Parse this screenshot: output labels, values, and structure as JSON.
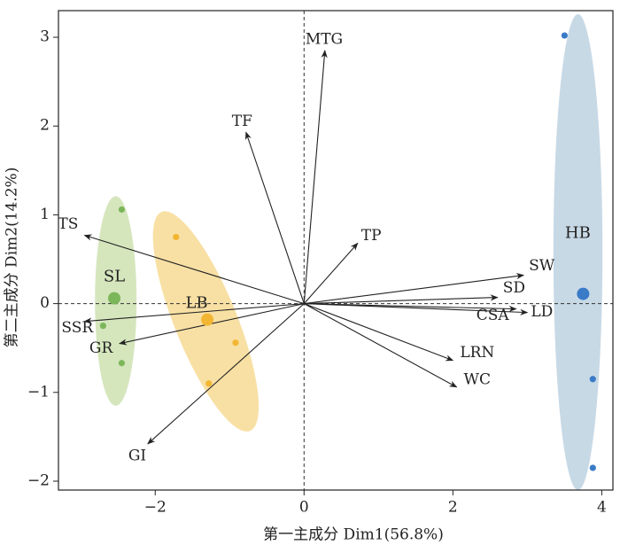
{
  "chart_data": {
    "type": "scatter",
    "subtype": "pca-biplot",
    "xlabel": "第一主成分 Dim1(56.8%)",
    "ylabel": "第二主成分 Dim2(14.2%)",
    "xlim": [
      -3.3,
      4.15
    ],
    "ylim": [
      -2.1,
      3.3
    ],
    "x_ticks": [
      -2,
      0,
      2,
      4
    ],
    "y_ticks": [
      -2,
      -1,
      0,
      1,
      2,
      3
    ],
    "x_tick_labels": [
      "−2",
      "0",
      "2",
      "4"
    ],
    "y_tick_labels": [
      "−2",
      "−1",
      "0",
      "1",
      "2",
      "3"
    ],
    "grid": false,
    "reference_lines": "dashed lines at x=0 and y=0",
    "groups": [
      {
        "name": "SL",
        "color": "#7cb65a",
        "ellipse_color": "#d5e6bd",
        "centroid": [
          -2.55,
          0.06
        ],
        "points": [
          [
            -2.45,
            1.06
          ],
          [
            -2.7,
            -0.25
          ],
          [
            -2.45,
            -0.67
          ]
        ],
        "ellipse": {
          "cx": -2.53,
          "cy": 0.03,
          "rx": 0.28,
          "ry": 1.18,
          "angle": 0
        }
      },
      {
        "name": "LB",
        "color": "#f2b632",
        "ellipse_color": "#f8e0a4",
        "centroid": [
          -1.3,
          -0.18
        ],
        "points": [
          [
            -1.72,
            0.75
          ],
          [
            -0.92,
            -0.44
          ],
          [
            -1.28,
            -0.9
          ]
        ],
        "ellipse": {
          "cx": -1.32,
          "cy": -0.2,
          "rx": 0.42,
          "ry": 1.33,
          "angle": -22
        }
      },
      {
        "name": "HB",
        "color": "#3a7bc8",
        "ellipse_color": "#c8d9e6",
        "centroid": [
          3.75,
          0.11
        ],
        "points": [
          [
            3.5,
            3.02
          ],
          [
            3.88,
            -0.85
          ],
          [
            3.88,
            -1.85
          ]
        ],
        "ellipse": {
          "cx": 3.68,
          "cy": 0.58,
          "rx": 0.33,
          "ry": 2.68,
          "angle": 0
        }
      }
    ],
    "loadings": [
      {
        "name": "MTG",
        "x": 0.28,
        "y": 2.85
      },
      {
        "name": "TF",
        "x": -0.78,
        "y": 1.93
      },
      {
        "name": "TP",
        "x": 0.72,
        "y": 0.68
      },
      {
        "name": "TS",
        "x": -2.95,
        "y": 0.77
      },
      {
        "name": "SW",
        "x": 2.95,
        "y": 0.32
      },
      {
        "name": "SD",
        "x": 2.6,
        "y": 0.07
      },
      {
        "name": "LD",
        "x": 3.0,
        "y": -0.1
      },
      {
        "name": "CSA",
        "x": 2.85,
        "y": -0.06
      },
      {
        "name": "SSR",
        "x": -2.95,
        "y": -0.2
      },
      {
        "name": "GR",
        "x": -2.48,
        "y": -0.45
      },
      {
        "name": "LRN",
        "x": 2.0,
        "y": -0.64
      },
      {
        "name": "WC",
        "x": 2.05,
        "y": -0.94
      },
      {
        "name": "GI",
        "x": -2.1,
        "y": -1.58
      }
    ]
  }
}
